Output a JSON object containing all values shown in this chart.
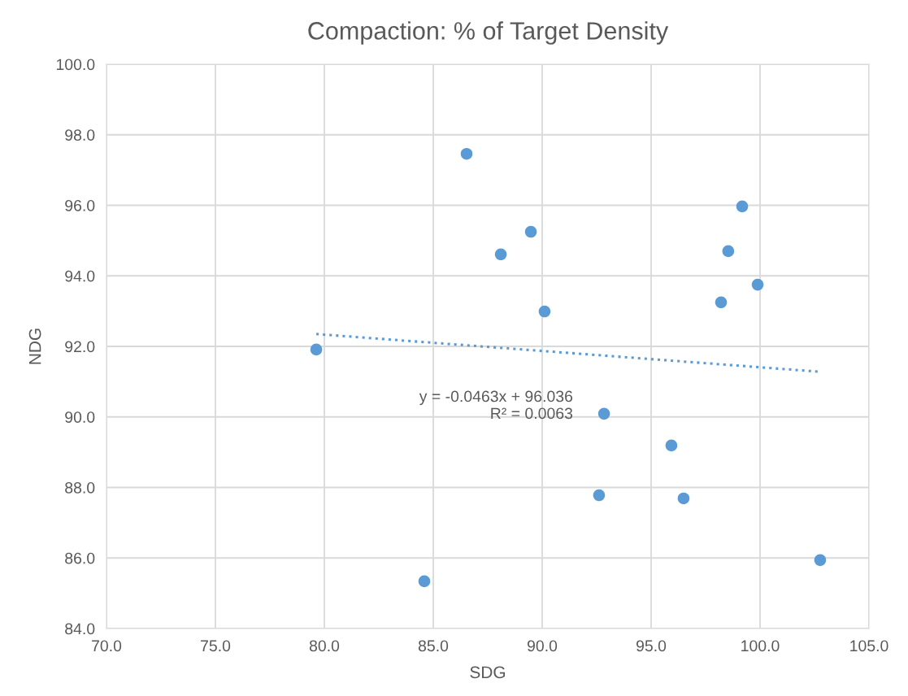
{
  "chart_data": {
    "type": "scatter",
    "title": "Compaction: % of Target Density",
    "xlabel": "SDG",
    "ylabel": "NDG",
    "series": [
      {
        "color": "#5b9bd5",
        "marker": "circle",
        "x": [
          79.63,
          84.59,
          86.53,
          88.1,
          89.48,
          90.11,
          92.84,
          92.61,
          95.93,
          96.49,
          98.21,
          98.54,
          99.18,
          99.89,
          102.76
        ],
        "values": [
          91.91,
          85.34,
          97.46,
          94.61,
          95.25,
          92.99,
          90.09,
          87.78,
          89.19,
          87.69,
          93.25,
          94.7,
          95.97,
          93.75,
          85.94
        ]
      },
      {
        "type": "line",
        "color": "#5b9bd5",
        "line_style": "dotted",
        "x": [
          79.63,
          102.76
        ],
        "values": [
          92.35,
          91.28
        ]
      }
    ],
    "annotations": [
      "y = -0.0463x + 96.036\nR² = 0.0063"
    ],
    "xlim": [
      70,
      105
    ],
    "ylim": [
      84,
      100
    ],
    "xticks": [
      {
        "value": 70,
        "label": "70.0"
      },
      {
        "value": 75,
        "label": "75.0"
      },
      {
        "value": 80,
        "label": "80.0"
      },
      {
        "value": 85,
        "label": "85.0"
      },
      {
        "value": 90,
        "label": "90.0"
      },
      {
        "value": 95,
        "label": "95.0"
      },
      {
        "value": 100,
        "label": "100.0"
      },
      {
        "value": 105,
        "label": "105.0"
      }
    ],
    "yticks": [
      {
        "value": 84,
        "label": "84.0"
      },
      {
        "value": 86,
        "label": "86.0"
      },
      {
        "value": 88,
        "label": "88.0"
      },
      {
        "value": 90,
        "label": "90.0"
      },
      {
        "value": 92,
        "label": "92.0"
      },
      {
        "value": 94,
        "label": "94.0"
      },
      {
        "value": 96,
        "label": "96.0"
      },
      {
        "value": 98,
        "label": "98.0"
      },
      {
        "value": 100,
        "label": "100.0"
      }
    ],
    "grid": true
  }
}
